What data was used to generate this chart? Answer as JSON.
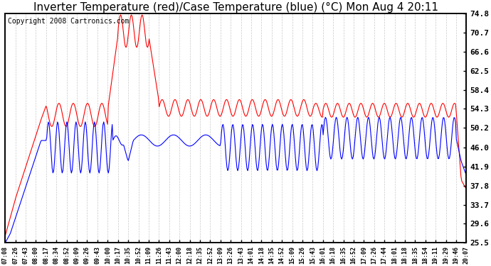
{
  "title": "Inverter Temperature (red)/Case Temperature (blue) (°C) Mon Aug 4 20:11",
  "copyright": "Copyright 2008 Cartronics.com",
  "yticks": [
    25.5,
    29.6,
    33.7,
    37.8,
    41.9,
    46.0,
    50.2,
    54.3,
    58.4,
    62.5,
    66.6,
    70.7,
    74.8
  ],
  "ymin": 25.5,
  "ymax": 74.8,
  "xtick_labels": [
    "07:08",
    "07:26",
    "07:43",
    "08:00",
    "08:17",
    "08:34",
    "08:52",
    "09:09",
    "09:26",
    "09:43",
    "10:00",
    "10:17",
    "10:35",
    "10:52",
    "11:09",
    "11:26",
    "11:43",
    "12:00",
    "12:18",
    "12:35",
    "12:52",
    "13:09",
    "13:26",
    "13:43",
    "14:01",
    "14:18",
    "14:35",
    "14:52",
    "15:09",
    "15:26",
    "15:43",
    "16:01",
    "16:18",
    "16:35",
    "16:52",
    "17:09",
    "17:26",
    "17:44",
    "18:01",
    "18:18",
    "18:35",
    "18:54",
    "19:11",
    "19:29",
    "19:46",
    "20:07"
  ],
  "red_color": "#ff0000",
  "blue_color": "#0000ff",
  "bg_color": "#ffffff",
  "plot_bg_color": "#ffffff",
  "grid_color": "#bbbbbb",
  "title_fontsize": 11,
  "copyright_fontsize": 7
}
